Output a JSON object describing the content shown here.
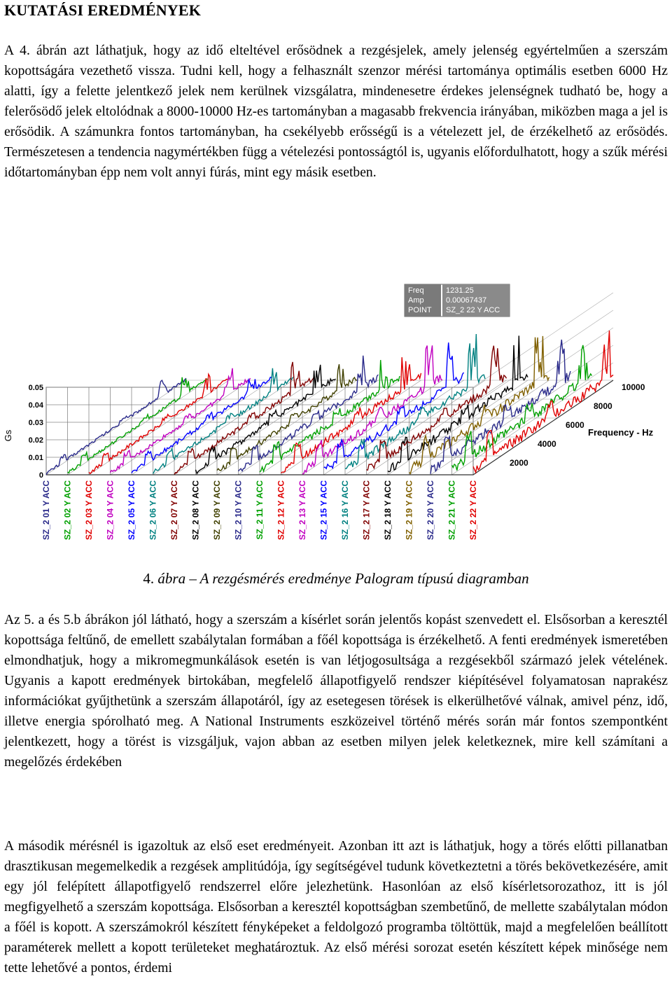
{
  "heading": "KUTATÁSI EREDMÉNYEK",
  "paragraph1": "A 4. ábrán azt láthatjuk, hogy az idő elteltével erősödnek a rezgésjelek, amely jelenség egyértelműen a szerszám kopottságára vezethető vissza. Tudni kell, hogy a felhasznált szenzor mérési tartománya optimális esetben 6000 Hz alatti, így a felette jelentkező jelek nem kerülnek vizsgálatra, mindenesetre érdekes jelenségnek tudható be, hogy a felerősödő jelek eltolódnak a 8000-10000 Hz-es tartományban a magasabb frekvencia irányában, miközben maga a jel is erősödik. A számunkra fontos tartományban, ha csekélyebb erősségű is a vételezett jel, de érzékelhető az erősödés. Természetesen a tendencia nagymértékben függ a vételezési pontosságtól is, ugyanis előfordulhatott, hogy a szűk mérési időtartományban épp nem volt annyi fúrás, mint egy másik esetben.",
  "caption": {
    "number": "4.",
    "text": "ábra – A rezgésmérés eredménye Palogram típusú diagramban"
  },
  "paragraph2": "Az 5. a és 5.b ábrákon jól látható, hogy a szerszám a kísérlet során jelentős kopást szenvedett el. Elsősorban a keresztél kopottsága feltűnő, de emellett szabálytalan formában a főél kopottsága is érzékelhető. A fenti eredmények ismeretében elmondhatjuk, hogy a mikromegmunkálások esetén is van létjogosultsága a rezgésekből származó jelek vételének. Ugyanis a kapott eredmények birtokában, megfelelő állapotfigyelő rendszer kiépítésével folyamatosan naprakész információkat gyűjthetünk a szerszám állapotáról, így az esetegesen törések is elkerülhetővé válnak, amivel pénz, idő, illetve energia spórolható meg. A National Instruments eszközeivel történő mérés során már fontos szempontként jelentkezett, hogy a törést is vizsgáljuk, vajon abban az esetben milyen jelek keletkeznek, mire kell számítani a megelőzés érdekében",
  "paragraph3": "A második mérésnél is igazoltuk az első eset eredményeit. Azonban itt azt is láthatjuk, hogy a törés előtti pillanatban drasztikusan megemelkedik a rezgések amplitúdója, így segítségével tudunk következtetni a törés bekövetkezésére, amit egy jól felépített állapotfigyelő rendszerrel előre jelezhetünk. Hasonlóan az első kísérletsorozathoz, itt is jól megfigyelhető a szerszám kopottsága. Elsősorban a keresztél kopottságban szembetűnő, de mellette szabálytalan módon a főél is kopott. A szerszámokról készített fényképeket a feldolgozó programba töltöttük, majd a megfelelően beállított paraméterek mellett a kopott területeket meghatároztuk. Az első mérési sorozat esetén készített képek minősége nem tette lehetővé a pontos, érdemi",
  "chart_data": {
    "type": "line",
    "ylabel": "Gs",
    "xlabel": "Frequency - Hz",
    "y_ticks": [
      "0.05",
      "0.04",
      "0.03",
      "0.02",
      "0.01",
      "0"
    ],
    "ylim": [
      0,
      0.05
    ],
    "freq_ticks": [
      "2000",
      "4000",
      "6000",
      "8000",
      "10000"
    ],
    "xlim": [
      0,
      10000
    ],
    "grid": true,
    "infobox": {
      "labels": [
        "Freq",
        "Amp",
        "POINT"
      ],
      "values": [
        "1231.25",
        "0.00067437",
        "SZ_2 22 Y ACC"
      ]
    },
    "series": [
      {
        "name": "SZ_2 01 Y ACC",
        "color": "#2a2a8a"
      },
      {
        "name": "SZ_2 02 Y ACC",
        "color": "#00a000"
      },
      {
        "name": "SZ_2 03 Y ACC",
        "color": "#e00000"
      },
      {
        "name": "SZ_2 04 Y ACC",
        "color": "#c000c0"
      },
      {
        "name": "SZ_2 05 Y ACC",
        "color": "#0000ff"
      },
      {
        "name": "SZ_2 06 Y ACC",
        "color": "#008080"
      },
      {
        "name": "SZ_2 07 Y ACC",
        "color": "#800000"
      },
      {
        "name": "SZ_2 08 Y ACC",
        "color": "#000000"
      },
      {
        "name": "SZ_2 09 Y ACC",
        "color": "#404000"
      },
      {
        "name": "SZ_2 10 Y ACC",
        "color": "#2a2a8a"
      },
      {
        "name": "SZ_2 11 Y ACC",
        "color": "#00a000"
      },
      {
        "name": "SZ_2 12 Y ACC",
        "color": "#e00000"
      },
      {
        "name": "SZ_2 13 Y ACC",
        "color": "#c000c0"
      },
      {
        "name": "SZ_2 15 Y ACC",
        "color": "#0000ff"
      },
      {
        "name": "SZ_2 16 Y ACC",
        "color": "#008080"
      },
      {
        "name": "SZ_2 17 Y ACC",
        "color": "#800000"
      },
      {
        "name": "SZ_2 18 Y ACC",
        "color": "#000000"
      },
      {
        "name": "SZ_2 19 Y ACC",
        "color": "#806000"
      },
      {
        "name": "SZ_2 20 Y ACC",
        "color": "#2a2a8a"
      },
      {
        "name": "SZ_2 21 Y ACC",
        "color": "#00a000"
      },
      {
        "name": "SZ_2 22 Y ACC",
        "color": "#e00000"
      }
    ]
  }
}
